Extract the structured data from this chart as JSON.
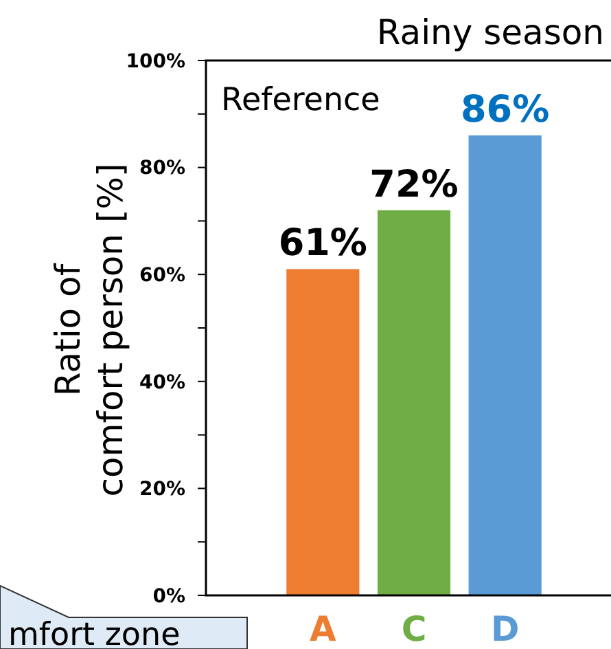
{
  "chart_data": {
    "type": "bar",
    "title": "Rainy season",
    "ylabel": "Ratio of\ncomfort person [%]",
    "categories": [
      "A",
      "C",
      "D"
    ],
    "values": [
      61,
      72,
      86
    ],
    "colors": [
      "#ed7d31",
      "#70ad47",
      "#5b9bd5"
    ],
    "value_labels": [
      "61%",
      "72%",
      "86%"
    ],
    "ylim": [
      0,
      100
    ],
    "yticks": [
      {
        "value": 0,
        "label": "0%"
      },
      {
        "value": 10,
        "label": null
      },
      {
        "value": 20,
        "label": "20%"
      },
      {
        "value": 30,
        "label": null
      },
      {
        "value": 40,
        "label": "40%"
      },
      {
        "value": 50,
        "label": null
      },
      {
        "value": 60,
        "label": "60%"
      },
      {
        "value": 70,
        "label": null
      },
      {
        "value": 80,
        "label": "80%"
      },
      {
        "value": 90,
        "label": null
      },
      {
        "value": 100,
        "label": "100%"
      }
    ],
    "grid": false,
    "annotations": [
      "Reference",
      "mfort zone"
    ]
  }
}
